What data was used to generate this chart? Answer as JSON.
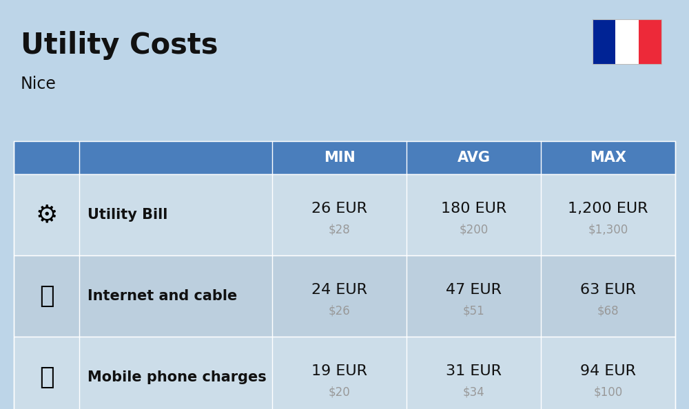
{
  "title": "Utility Costs",
  "subtitle": "Nice",
  "background_color": "#bdd5e8",
  "header_bg_color": "#4a7ebc",
  "header_text_color": "#ffffff",
  "row_bg_color_1": "#ccdde9",
  "row_bg_color_2": "#bccfde",
  "cell_text_color": "#111111",
  "usd_text_color": "#999999",
  "flag_blue": "#002395",
  "flag_white": "#ffffff",
  "flag_red": "#ED2939",
  "rows": [
    {
      "label": "Utility Bill",
      "min_eur": "26 EUR",
      "min_usd": "$28",
      "avg_eur": "180 EUR",
      "avg_usd": "$200",
      "max_eur": "1,200 EUR",
      "max_usd": "$1,300"
    },
    {
      "label": "Internet and cable",
      "min_eur": "24 EUR",
      "min_usd": "$26",
      "avg_eur": "47 EUR",
      "avg_usd": "$51",
      "max_eur": "63 EUR",
      "max_usd": "$68"
    },
    {
      "label": "Mobile phone charges",
      "min_eur": "19 EUR",
      "min_usd": "$20",
      "avg_eur": "31 EUR",
      "avg_usd": "$34",
      "max_eur": "94 EUR",
      "max_usd": "$100"
    }
  ],
  "title_fontsize": 30,
  "subtitle_fontsize": 17,
  "header_fontsize": 15,
  "label_fontsize": 15,
  "value_fontsize": 16,
  "usd_fontsize": 12,
  "icon_fontsize": 26
}
